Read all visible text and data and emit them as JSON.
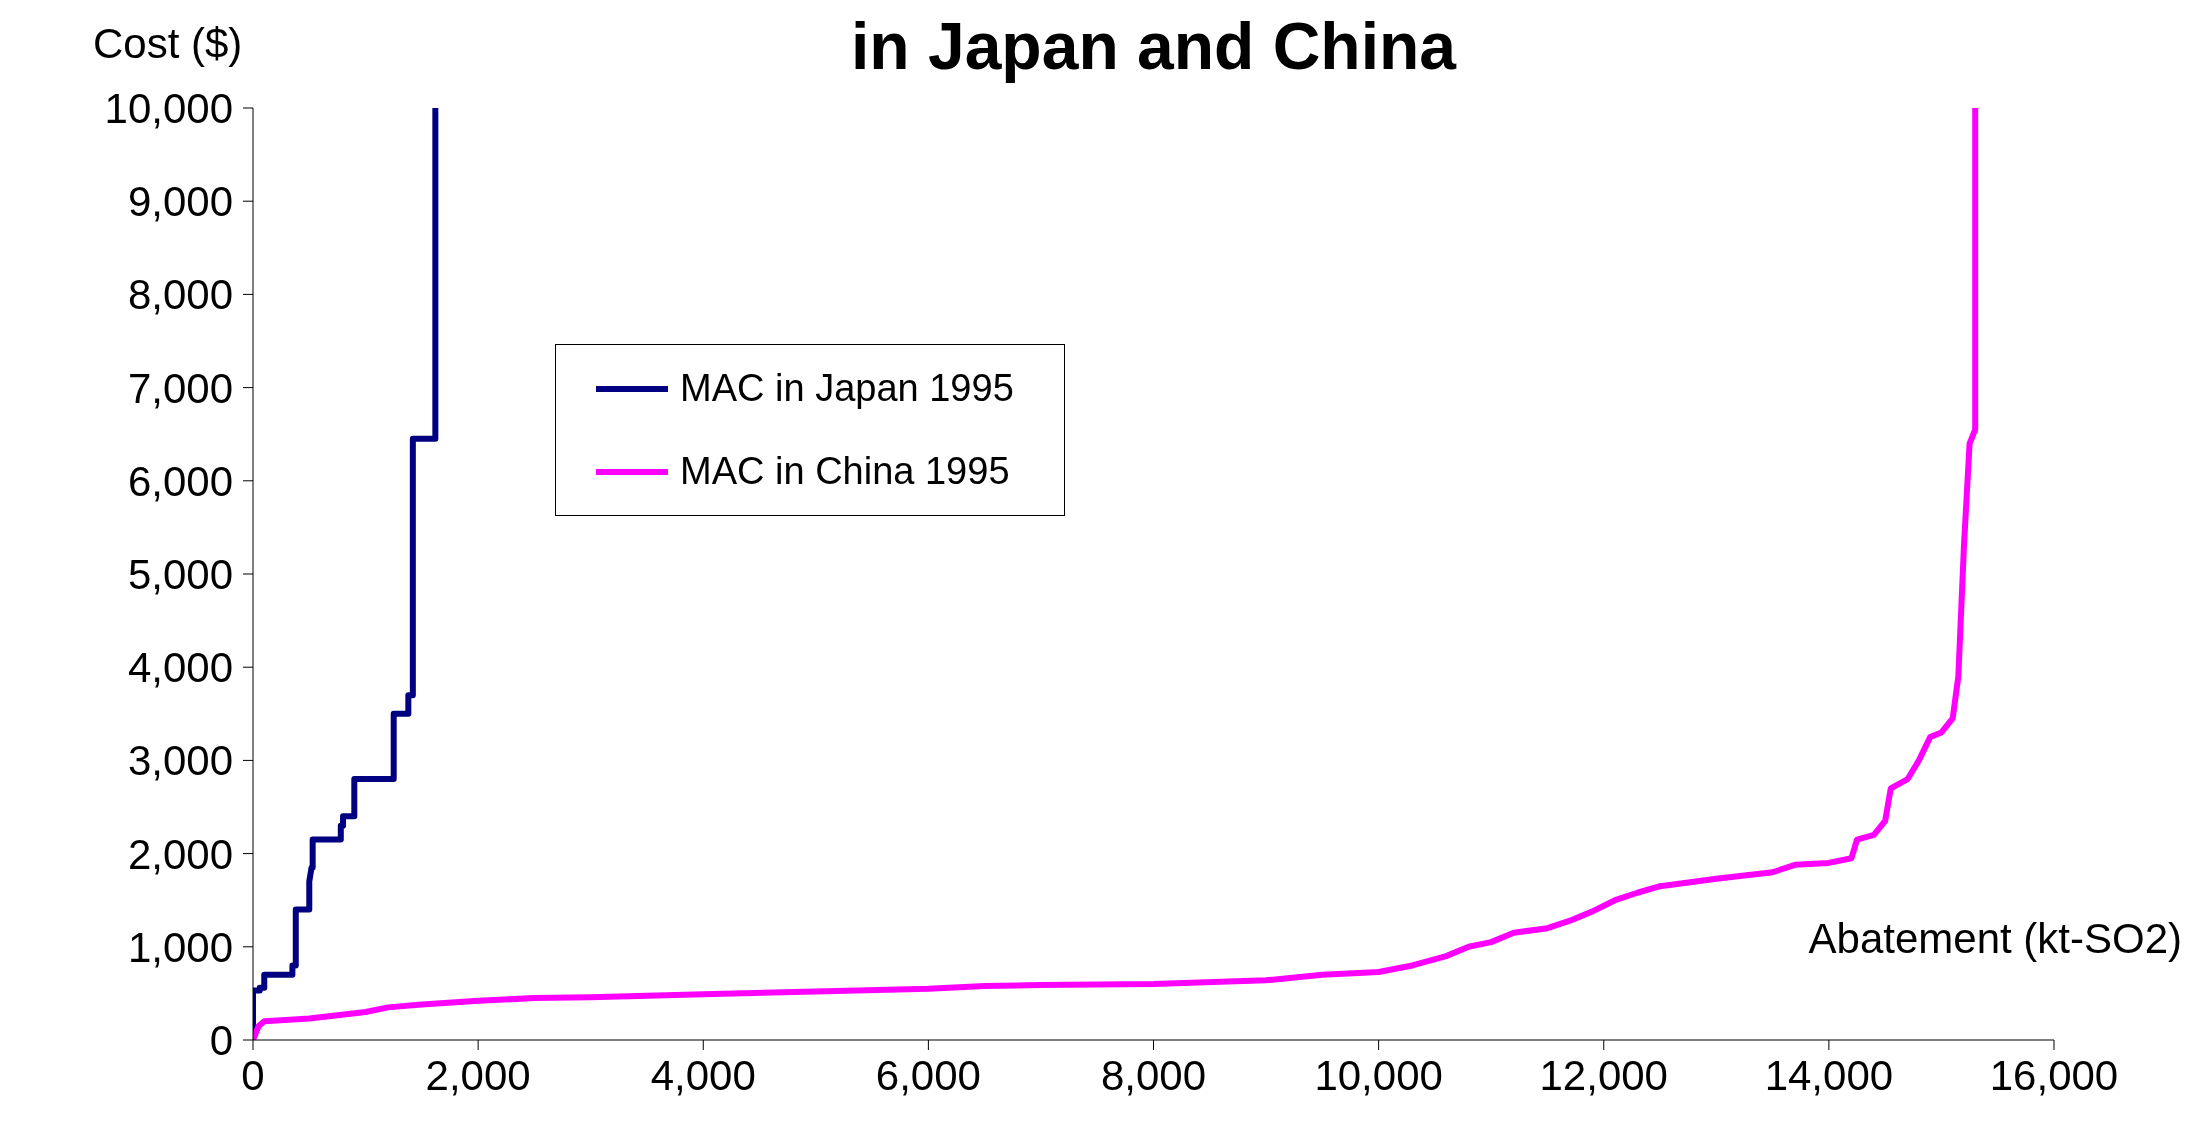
{
  "chart_data": {
    "type": "line",
    "title": "in Japan and China",
    "xlabel": "Abatement (kt-SO2)",
    "ylabel": "Cost ($)",
    "xlim": [
      0,
      16000
    ],
    "xticks": [
      0,
      {
        "value": 2000,
        "label": "2,000"
      },
      {
        "value": 4000,
        "label": "4,000"
      },
      {
        "value": 6000,
        "label": "6,000"
      },
      {
        "value": 8000,
        "label": "8,000"
      },
      {
        "value": 10000,
        "label": "10,000"
      },
      {
        "value": 12000,
        "label": "12,000"
      },
      {
        "value": 14000,
        "label": "14,000"
      },
      {
        "value": 16000,
        "label": "16,000"
      }
    ],
    "ylim": [
      0,
      10000
    ],
    "yticks": [
      0,
      {
        "value": 1000,
        "label": "1,000"
      },
      {
        "value": 2000,
        "label": "2,000"
      },
      {
        "value": 3000,
        "label": "3,000"
      },
      {
        "value": 4000,
        "label": "4,000"
      },
      {
        "value": 5000,
        "label": "5,000"
      },
      {
        "value": 6000,
        "label": "6,000"
      },
      {
        "value": 7000,
        "label": "7,000"
      },
      {
        "value": 8000,
        "label": "8,000"
      },
      {
        "value": 9000,
        "label": "9,000"
      },
      {
        "value": 10000,
        "label": "10,000"
      }
    ],
    "grid": false,
    "legend": "top",
    "marker": "none",
    "line_style": "solid",
    "series": [
      {
        "name": "MAC in Japan 1995",
        "color": "#000080",
        "x": [
          0,
          0,
          60,
          60,
          100,
          100,
          350,
          350,
          380,
          380,
          500,
          500,
          520,
          530,
          530,
          780,
          780,
          800,
          800,
          900,
          900,
          950,
          950,
          1250,
          1250,
          1270,
          1270,
          1380,
          1380,
          1400,
          1400,
          1420,
          1420,
          1620,
          1620
        ],
        "values": [
          0,
          530,
          530,
          560,
          560,
          700,
          700,
          800,
          800,
          1400,
          1400,
          1700,
          1850,
          1850,
          2150,
          2150,
          2300,
          2300,
          2400,
          2400,
          2800,
          2800,
          2800,
          2800,
          3500,
          3500,
          3500,
          3500,
          3700,
          3700,
          3700,
          3700,
          6450,
          6450,
          10000
        ]
      },
      {
        "name": "MAC in China 1995",
        "color": "#ff00ff",
        "x": [
          0,
          50,
          100,
          500,
          1000,
          1200,
          1500,
          2000,
          2500,
          3000,
          4000,
          5000,
          6000,
          6500,
          7000,
          8000,
          9000,
          9500,
          10000,
          10300,
          10600,
          10800,
          11000,
          11200,
          11500,
          11700,
          11900,
          12100,
          12300,
          12500,
          13000,
          13500,
          13700,
          14000,
          14200,
          14250,
          14400,
          14500,
          14550,
          14700,
          14800,
          14900,
          15000,
          15100,
          15150,
          15200,
          15250,
          15300,
          15300,
          15300
        ],
        "values": [
          0,
          150,
          200,
          230,
          300,
          350,
          380,
          420,
          450,
          460,
          490,
          520,
          550,
          580,
          590,
          600,
          640,
          700,
          730,
          800,
          900,
          1000,
          1050,
          1150,
          1200,
          1280,
          1380,
          1500,
          1580,
          1650,
          1730,
          1800,
          1880,
          1900,
          1950,
          2150,
          2200,
          2350,
          2700,
          2800,
          3000,
          3250,
          3300,
          3450,
          3900,
          5300,
          6400,
          6550,
          7500,
          10000
        ]
      }
    ]
  }
}
